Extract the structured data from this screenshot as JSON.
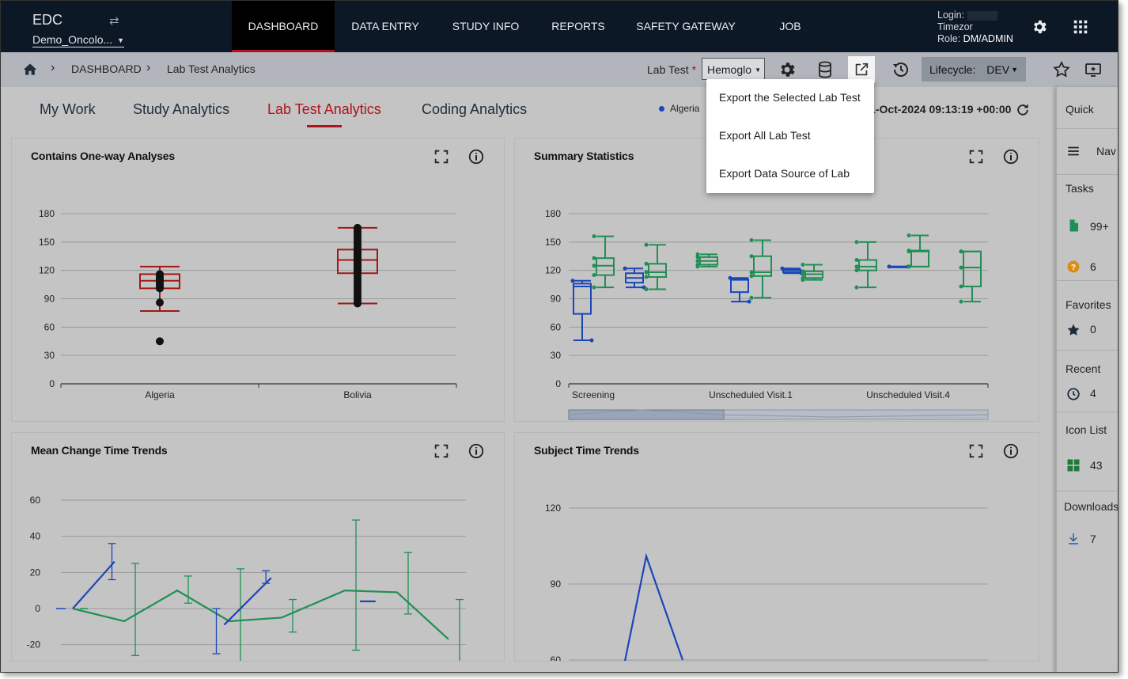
{
  "app": {
    "brand": "EDC",
    "study_selector": "Demo_Oncolo..."
  },
  "nav": {
    "tabs": [
      "DASHBOARD",
      "DATA ENTRY",
      "STUDY INFO",
      "REPORTS",
      "SAFETY GATEWAY",
      "JOB"
    ],
    "active": "DASHBOARD"
  },
  "user": {
    "login_label": "Login:",
    "timezone_label": "Timezor",
    "role_label": "Role:",
    "role_value": "DM/ADMIN"
  },
  "breadcrumb": {
    "home": "home-icon",
    "items": [
      "DASHBOARD",
      "Lab Test Analytics"
    ]
  },
  "toolbar": {
    "lab_test_label": "Lab Test",
    "required_mark": "*",
    "lab_test_value": "Hemoglo",
    "lifecycle_label": "Lifecycle:",
    "lifecycle_value": "DEV"
  },
  "analytics_tabs": {
    "items": [
      "My Work",
      "Study Analytics",
      "Lab Test Analytics",
      "Coding Analytics"
    ],
    "active": "Lab Test Analytics"
  },
  "filter_legend": "Algeria",
  "refresh_time": "1-Oct-2024 09:13:19 +00:00",
  "export_menu": {
    "items": [
      "Export the Selected Lab Test",
      "Export All Lab Test",
      "Export Data Source of Lab"
    ]
  },
  "quick_panel": {
    "title": "Quick",
    "nav_label": "Nav",
    "tasks_label": "Tasks",
    "tasks_count": "99+",
    "queries_count": "6",
    "favorites_label": "Favorites",
    "favorites_count": "0",
    "recent_label": "Recent",
    "recent_count": "4",
    "iconlist_label": "Icon List",
    "iconlist_count": "43",
    "downloads_label": "Downloads",
    "downloads_count": "7"
  },
  "panels": {
    "p1_title": "Contains One-way Analyses",
    "p2_title": "Summary Statistics",
    "p3_title": "Mean Change Time Trends",
    "p4_title": "Subject Time Trends"
  },
  "colors": {
    "accent_red": "#b0121b",
    "series_blue": "#1a47b8",
    "series_green": "#1f8f55",
    "boxplot_red": "#a01818"
  },
  "chart_data": [
    {
      "type": "boxplot",
      "title": "Contains One-way Analyses",
      "categories": [
        "Algeria",
        "Bolivia"
      ],
      "ylim": [
        0,
        180
      ],
      "yticks": [
        0,
        30,
        60,
        90,
        120,
        150,
        180
      ],
      "boxes": [
        {
          "category": "Algeria",
          "min": 77,
          "q1": 101,
          "median": 109,
          "q3": 116,
          "max": 124,
          "outliers": [
            45,
            86
          ]
        },
        {
          "category": "Bolivia",
          "min": 85,
          "q1": 117,
          "median": 131,
          "q3": 142,
          "max": 165
        }
      ]
    },
    {
      "type": "boxplot",
      "title": "Summary Statistics",
      "categories": [
        "Screening",
        "",
        "",
        "",
        "",
        "Unscheduled Visit.1",
        "",
        "",
        "",
        "",
        "Unscheduled Visit.4"
      ],
      "x_tick_labels": [
        "Screening",
        "Unscheduled Visit.1",
        "Unscheduled Visit.4"
      ],
      "ylim": [
        0,
        180
      ],
      "yticks": [
        0,
        30,
        60,
        90,
        120,
        150,
        180
      ],
      "series": [
        {
          "name": "blue",
          "boxes": [
            {
              "min": 46,
              "q1": 74,
              "median": 103,
              "q3": 106,
              "max": 109
            },
            {
              "min": 102,
              "q1": 107,
              "median": 112,
              "q3": 117,
              "max": 122
            },
            null,
            {
              "min": 87,
              "q1": 97,
              "median": 110,
              "q3": 111,
              "max": 112
            },
            {
              "min": 117,
              "q1": 118,
              "median": 120,
              "q3": 121,
              "max": 122
            },
            null,
            null,
            null,
            null,
            null,
            {
              "min": 124,
              "q1": 124,
              "median": 124,
              "q3": 124,
              "max": 124
            }
          ]
        },
        {
          "name": "green",
          "boxes": [
            {
              "min": 102,
              "q1": 115,
              "median": 125,
              "q3": 133,
              "max": 156
            },
            {
              "min": 100,
              "q1": 113,
              "median": 118,
              "q3": 127,
              "max": 147
            },
            {
              "min": 124,
              "q1": 126,
              "median": 130,
              "q3": 134,
              "max": 137
            },
            {
              "min": 91,
              "q1": 114,
              "median": 118,
              "q3": 135,
              "max": 152
            },
            {
              "min": 110,
              "q1": 112,
              "median": 116,
              "q3": 119,
              "max": 126
            },
            {
              "min": 102,
              "q1": 120,
              "median": 124,
              "q3": 131,
              "max": 150
            },
            {
              "min": 124,
              "q1": 124,
              "median": 140,
              "q3": 141,
              "max": 157
            },
            {
              "min": 87,
              "q1": 103,
              "median": 123,
              "q3": 140,
              "max": 140
            }
          ]
        }
      ]
    },
    {
      "type": "line",
      "title": "Mean Change Time Trends",
      "ylim": [
        -30,
        70
      ],
      "yticks": [
        -20,
        0,
        20,
        40,
        60
      ],
      "series": [
        {
          "name": "green",
          "points": [
            [
              0,
              0
            ],
            [
              1,
              -7
            ],
            [
              2,
              10
            ],
            [
              3,
              -7
            ],
            [
              4,
              -5
            ],
            [
              5,
              10
            ],
            [
              6,
              9
            ],
            [
              7,
              -17
            ]
          ],
          "errors": [
            [
              0,
              0,
              0
            ],
            [
              1,
              -26,
              25
            ],
            [
              2,
              3,
              18
            ],
            [
              3,
              -30,
              22
            ],
            [
              4,
              -13,
              5
            ],
            [
              5,
              -23,
              49
            ],
            [
              6,
              -3,
              31
            ],
            [
              7,
              -30,
              5
            ]
          ]
        },
        {
          "name": "blue",
          "segments": [
            [
              [
                0,
                0
              ],
              [
                0.8,
                26
              ]
            ],
            [
              [
                2.9,
                -9
              ],
              [
                3.8,
                17
              ]
            ],
            [
              [
                5.5,
                4
              ],
              [
                5.8,
                4
              ]
            ]
          ],
          "errors": [
            [
              0.75,
              16,
              36
            ],
            [
              2.75,
              -25,
              0
            ],
            [
              3.7,
              14,
              21
            ]
          ]
        }
      ]
    },
    {
      "type": "line",
      "title": "Subject Time Trends",
      "ylim": [
        60,
        130
      ],
      "yticks": [
        60,
        90,
        120
      ],
      "series": [
        {
          "name": "blue",
          "points": [
            [
              0,
              58
            ],
            [
              1,
              101
            ],
            [
              2,
              60
            ]
          ]
        }
      ]
    }
  ]
}
